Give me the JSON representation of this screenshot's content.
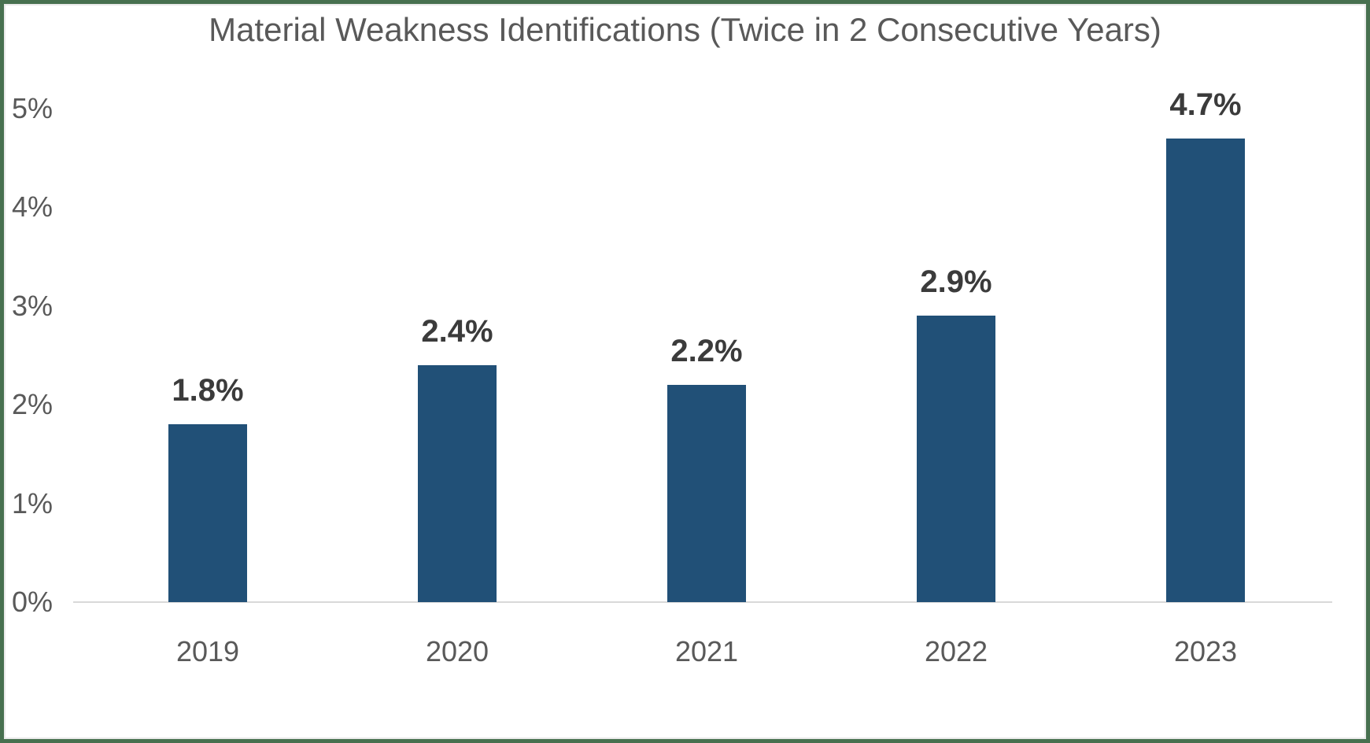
{
  "chart_data": {
    "type": "bar",
    "title": "Material Weakness Identifications (Twice in 2 Consecutive Years)",
    "categories": [
      "2019",
      "2020",
      "2021",
      "2022",
      "2023"
    ],
    "values": [
      1.8,
      2.4,
      2.2,
      2.9,
      4.7
    ],
    "data_labels": [
      "1.8%",
      "2.4%",
      "2.2%",
      "2.9%",
      "4.7%"
    ],
    "y_ticks": [
      "0%",
      "1%",
      "2%",
      "3%",
      "4%",
      "5%"
    ],
    "ylim": [
      0,
      5
    ],
    "xlabel": "",
    "ylabel": "",
    "grid": false,
    "legend": false,
    "colors": {
      "bar": "#215077",
      "title_text": "#595959",
      "axis_text": "#595959",
      "data_label_text": "#3B3B3B",
      "axis_line": "#D9D9D9",
      "frame_border": "#47704F",
      "background": "#FFFFFF"
    }
  }
}
